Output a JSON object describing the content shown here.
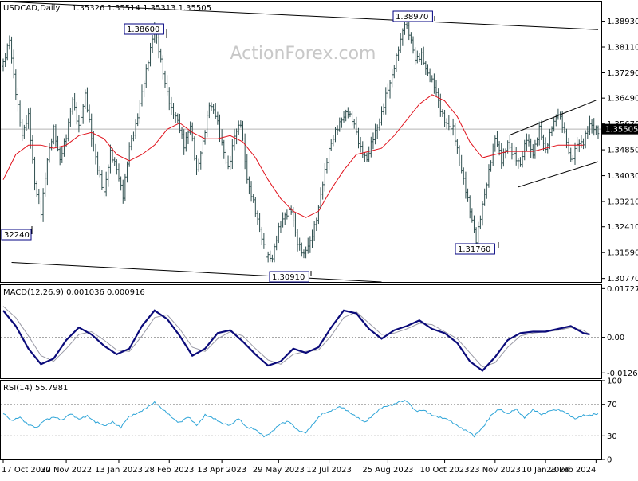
{
  "chart_data": {
    "type": "candlestick",
    "symbol_timeframe": "USDCAD,Daily",
    "ohlc_header": "1.35326 1.35514 1.35313 1.35505",
    "watermark": "ActionForex.com",
    "current_price": 1.35505,
    "current_price_label": "1.35505",
    "price_axis": {
      "range": [
        1.3066,
        1.3955
      ],
      "ticks": [
        "1.38930",
        "1.38110",
        "1.37290",
        "1.36490",
        "1.35670",
        "1.34850",
        "1.34030",
        "1.33210",
        "1.32410",
        "1.31590",
        "1.30770"
      ]
    },
    "x_axis": {
      "labels": [
        "17 Oct 2022",
        "30 Nov 2022",
        "13 Jan 2023",
        "28 Feb 2023",
        "13 Apr 2023",
        "29 May 2023",
        "12 Jul 2023",
        "25 Aug 2023",
        "10 Oct 2023",
        "23 Nov 2023",
        "10 Jan 2024",
        "23 Feb 2024"
      ]
    },
    "callouts": [
      "1.38600",
      "1.38970",
      "1.31760",
      "1.30910",
      "32240"
    ],
    "price_path": [
      [
        0,
        1.375
      ],
      [
        3,
        1.385
      ],
      [
        6,
        1.368
      ],
      [
        9,
        1.352
      ],
      [
        12,
        1.358
      ],
      [
        15,
        1.338
      ],
      [
        18,
        1.3295
      ],
      [
        21,
        1.346
      ],
      [
        24,
        1.355
      ],
      [
        27,
        1.344
      ],
      [
        30,
        1.352
      ],
      [
        33,
        1.366
      ],
      [
        36,
        1.357
      ],
      [
        39,
        1.365
      ],
      [
        42,
        1.351
      ],
      [
        45,
        1.343
      ],
      [
        48,
        1.336
      ],
      [
        51,
        1.348
      ],
      [
        54,
        1.342
      ],
      [
        57,
        1.333
      ],
      [
        60,
        1.349
      ],
      [
        63,
        1.357
      ],
      [
        66,
        1.368
      ],
      [
        69,
        1.376
      ],
      [
        72,
        1.385
      ],
      [
        74,
        1.38
      ],
      [
        77,
        1.371
      ],
      [
        80,
        1.362
      ],
      [
        83,
        1.357
      ],
      [
        86,
        1.349
      ],
      [
        89,
        1.356
      ],
      [
        92,
        1.342
      ],
      [
        95,
        1.352
      ],
      [
        98,
        1.363
      ],
      [
        101,
        1.358
      ],
      [
        104,
        1.35
      ],
      [
        107,
        1.344
      ],
      [
        110,
        1.354
      ],
      [
        113,
        1.356
      ],
      [
        116,
        1.338
      ],
      [
        119,
        1.332
      ],
      [
        122,
        1.324
      ],
      [
        125,
        1.316
      ],
      [
        128,
        1.314
      ],
      [
        131,
        1.322
      ],
      [
        134,
        1.327
      ],
      [
        137,
        1.331
      ],
      [
        140,
        1.32
      ],
      [
        143,
        1.314
      ],
      [
        146,
        1.318
      ],
      [
        149,
        1.327
      ],
      [
        152,
        1.339
      ],
      [
        155,
        1.349
      ],
      [
        158,
        1.354
      ],
      [
        161,
        1.357
      ],
      [
        164,
        1.36
      ],
      [
        167,
        1.358
      ],
      [
        170,
        1.35
      ],
      [
        173,
        1.344
      ],
      [
        176,
        1.351
      ],
      [
        179,
        1.358
      ],
      [
        182,
        1.367
      ],
      [
        185,
        1.372
      ],
      [
        188,
        1.38
      ],
      [
        191,
        1.388
      ],
      [
        193,
        1.385
      ],
      [
        196,
        1.378
      ],
      [
        199,
        1.38
      ],
      [
        202,
        1.372
      ],
      [
        205,
        1.367
      ],
      [
        208,
        1.361
      ],
      [
        211,
        1.358
      ],
      [
        214,
        1.356
      ],
      [
        217,
        1.344
      ],
      [
        220,
        1.335
      ],
      [
        223,
        1.326
      ],
      [
        225,
        1.32
      ],
      [
        228,
        1.332
      ],
      [
        231,
        1.342
      ],
      [
        234,
        1.351
      ],
      [
        237,
        1.344
      ],
      [
        240,
        1.352
      ],
      [
        243,
        1.348
      ],
      [
        246,
        1.343
      ],
      [
        249,
        1.351
      ],
      [
        252,
        1.347
      ],
      [
        255,
        1.356
      ],
      [
        258,
        1.349
      ],
      [
        261,
        1.356
      ],
      [
        264,
        1.359
      ],
      [
        267,
        1.353
      ],
      [
        270,
        1.346
      ],
      [
        273,
        1.352
      ],
      [
        276,
        1.35
      ],
      [
        279,
        1.355
      ]
    ],
    "moving_average": [
      [
        0,
        1.339
      ],
      [
        6,
        1.347
      ],
      [
        12,
        1.35
      ],
      [
        18,
        1.35
      ],
      [
        24,
        1.349
      ],
      [
        30,
        1.35
      ],
      [
        36,
        1.353
      ],
      [
        42,
        1.354
      ],
      [
        48,
        1.352
      ],
      [
        54,
        1.347
      ],
      [
        60,
        1.345
      ],
      [
        66,
        1.347
      ],
      [
        72,
        1.35
      ],
      [
        78,
        1.355
      ],
      [
        84,
        1.357
      ],
      [
        90,
        1.354
      ],
      [
        96,
        1.352
      ],
      [
        102,
        1.352
      ],
      [
        108,
        1.353
      ],
      [
        114,
        1.351
      ],
      [
        120,
        1.346
      ],
      [
        126,
        1.339
      ],
      [
        132,
        1.333
      ],
      [
        138,
        1.329
      ],
      [
        144,
        1.327
      ],
      [
        150,
        1.329
      ],
      [
        156,
        1.336
      ],
      [
        162,
        1.342
      ],
      [
        168,
        1.347
      ],
      [
        174,
        1.348
      ],
      [
        180,
        1.349
      ],
      [
        186,
        1.353
      ],
      [
        192,
        1.358
      ],
      [
        198,
        1.363
      ],
      [
        204,
        1.366
      ],
      [
        210,
        1.364
      ],
      [
        216,
        1.359
      ],
      [
        222,
        1.351
      ],
      [
        228,
        1.346
      ],
      [
        234,
        1.347
      ],
      [
        240,
        1.348
      ],
      [
        246,
        1.348
      ],
      [
        252,
        1.348
      ],
      [
        258,
        1.349
      ],
      [
        264,
        1.35
      ],
      [
        270,
        1.35
      ],
      [
        276,
        1.35
      ]
    ],
    "trend_lines": [
      {
        "from": [
          0,
          1.3955
        ],
        "to": [
          283,
          1.3866
        ]
      },
      {
        "from": [
          4,
          1.3128
        ],
        "to": [
          180,
          1.3066
        ]
      },
      {
        "from": [
          241,
          1.3532
        ],
        "to": [
          282,
          1.3642
        ]
      },
      {
        "from": [
          245,
          1.3367
        ],
        "to": [
          283,
          1.3447
        ]
      }
    ],
    "macd": {
      "label": "MACD(12,26,9) 0.001036 0.000916",
      "range": [
        -0.0145,
        0.0185
      ],
      "ticks": [
        "0.01727",
        "0.00",
        "-0.0126"
      ],
      "main": [
        [
          0,
          0.0095
        ],
        [
          6,
          0.004
        ],
        [
          12,
          -0.004
        ],
        [
          18,
          -0.0095
        ],
        [
          24,
          -0.0075
        ],
        [
          30,
          -0.001
        ],
        [
          36,
          0.0035
        ],
        [
          42,
          0.001
        ],
        [
          48,
          -0.003
        ],
        [
          54,
          -0.006
        ],
        [
          60,
          -0.004
        ],
        [
          66,
          0.004
        ],
        [
          72,
          0.0095
        ],
        [
          78,
          0.0065
        ],
        [
          84,
          0.0005
        ],
        [
          90,
          -0.0065
        ],
        [
          96,
          -0.004
        ],
        [
          102,
          0.0015
        ],
        [
          108,
          0.0025
        ],
        [
          114,
          -0.0015
        ],
        [
          120,
          -0.006
        ],
        [
          126,
          -0.01
        ],
        [
          132,
          -0.0085
        ],
        [
          138,
          -0.004
        ],
        [
          144,
          -0.0055
        ],
        [
          150,
          -0.0035
        ],
        [
          156,
          0.0035
        ],
        [
          162,
          0.0095
        ],
        [
          168,
          0.0085
        ],
        [
          174,
          0.003
        ],
        [
          180,
          -0.0005
        ],
        [
          186,
          0.0025
        ],
        [
          192,
          0.004
        ],
        [
          198,
          0.006
        ],
        [
          204,
          0.003
        ],
        [
          210,
          0.0015
        ],
        [
          216,
          -0.002
        ],
        [
          222,
          -0.0085
        ],
        [
          228,
          -0.0118
        ],
        [
          234,
          -0.007
        ],
        [
          240,
          -0.001
        ],
        [
          246,
          0.0015
        ],
        [
          252,
          0.002
        ],
        [
          258,
          0.002
        ],
        [
          264,
          0.003
        ],
        [
          270,
          0.004
        ],
        [
          276,
          0.0015
        ],
        [
          279,
          0.001
        ]
      ],
      "signal": [
        [
          0,
          0.011
        ],
        [
          6,
          0.007
        ],
        [
          12,
          0.0005
        ],
        [
          18,
          -0.0065
        ],
        [
          24,
          -0.0085
        ],
        [
          30,
          -0.004
        ],
        [
          36,
          0.001
        ],
        [
          42,
          0.002
        ],
        [
          48,
          -0.001
        ],
        [
          54,
          -0.0045
        ],
        [
          60,
          -0.005
        ],
        [
          66,
          0.0005
        ],
        [
          72,
          0.007
        ],
        [
          78,
          0.008
        ],
        [
          84,
          0.003
        ],
        [
          90,
          -0.0035
        ],
        [
          96,
          -0.005
        ],
        [
          102,
          -0.0005
        ],
        [
          108,
          0.002
        ],
        [
          114,
          0.0005
        ],
        [
          120,
          -0.004
        ],
        [
          126,
          -0.008
        ],
        [
          132,
          -0.0095
        ],
        [
          138,
          -0.006
        ],
        [
          144,
          -0.005
        ],
        [
          150,
          -0.0045
        ],
        [
          156,
          0.0005
        ],
        [
          162,
          0.007
        ],
        [
          168,
          0.009
        ],
        [
          174,
          0.005
        ],
        [
          180,
          0.001
        ],
        [
          186,
          0.0015
        ],
        [
          192,
          0.003
        ],
        [
          198,
          0.005
        ],
        [
          204,
          0.0045
        ],
        [
          210,
          0.002
        ],
        [
          216,
          -0.0005
        ],
        [
          222,
          -0.0055
        ],
        [
          228,
          -0.0105
        ],
        [
          234,
          -0.009
        ],
        [
          240,
          -0.0035
        ],
        [
          246,
          0.0005
        ],
        [
          252,
          0.0015
        ],
        [
          258,
          0.002
        ],
        [
          264,
          0.0025
        ],
        [
          270,
          0.0035
        ],
        [
          276,
          0.0025
        ],
        [
          279,
          0.0009
        ]
      ]
    },
    "rsi": {
      "label": "RSI(14) 55.7981",
      "range": [
        0,
        100
      ],
      "ticks": [
        "100",
        "70",
        "30",
        "0"
      ],
      "levels": [
        70,
        30
      ],
      "values": [
        [
          0,
          58
        ],
        [
          4,
          49
        ],
        [
          8,
          55
        ],
        [
          12,
          44
        ],
        [
          16,
          38
        ],
        [
          20,
          52
        ],
        [
          24,
          55
        ],
        [
          28,
          48
        ],
        [
          32,
          58
        ],
        [
          36,
          52
        ],
        [
          40,
          56
        ],
        [
          44,
          46
        ],
        [
          48,
          42
        ],
        [
          52,
          50
        ],
        [
          56,
          40
        ],
        [
          60,
          53
        ],
        [
          64,
          60
        ],
        [
          68,
          66
        ],
        [
          72,
          72
        ],
        [
          76,
          62
        ],
        [
          80,
          55
        ],
        [
          84,
          48
        ],
        [
          88,
          52
        ],
        [
          92,
          43
        ],
        [
          96,
          58
        ],
        [
          100,
          52
        ],
        [
          104,
          45
        ],
        [
          108,
          43
        ],
        [
          112,
          54
        ],
        [
          116,
          40
        ],
        [
          120,
          36
        ],
        [
          124,
          31
        ],
        [
          128,
          36
        ],
        [
          132,
          44
        ],
        [
          136,
          48
        ],
        [
          140,
          38
        ],
        [
          144,
          35
        ],
        [
          148,
          45
        ],
        [
          152,
          58
        ],
        [
          156,
          64
        ],
        [
          160,
          66
        ],
        [
          164,
          60
        ],
        [
          168,
          55
        ],
        [
          172,
          48
        ],
        [
          176,
          56
        ],
        [
          180,
          64
        ],
        [
          184,
          70
        ],
        [
          188,
          74
        ],
        [
          192,
          72
        ],
        [
          196,
          62
        ],
        [
          200,
          64
        ],
        [
          204,
          56
        ],
        [
          208,
          52
        ],
        [
          212,
          50
        ],
        [
          216,
          45
        ],
        [
          220,
          36
        ],
        [
          224,
          28
        ],
        [
          228,
          42
        ],
        [
          232,
          56
        ],
        [
          236,
          63
        ],
        [
          240,
          57
        ],
        [
          244,
          65
        ],
        [
          248,
          54
        ],
        [
          252,
          61
        ],
        [
          256,
          57
        ],
        [
          260,
          64
        ],
        [
          264,
          62
        ],
        [
          268,
          58
        ],
        [
          272,
          52
        ],
        [
          276,
          57
        ],
        [
          279,
          56
        ]
      ]
    }
  }
}
